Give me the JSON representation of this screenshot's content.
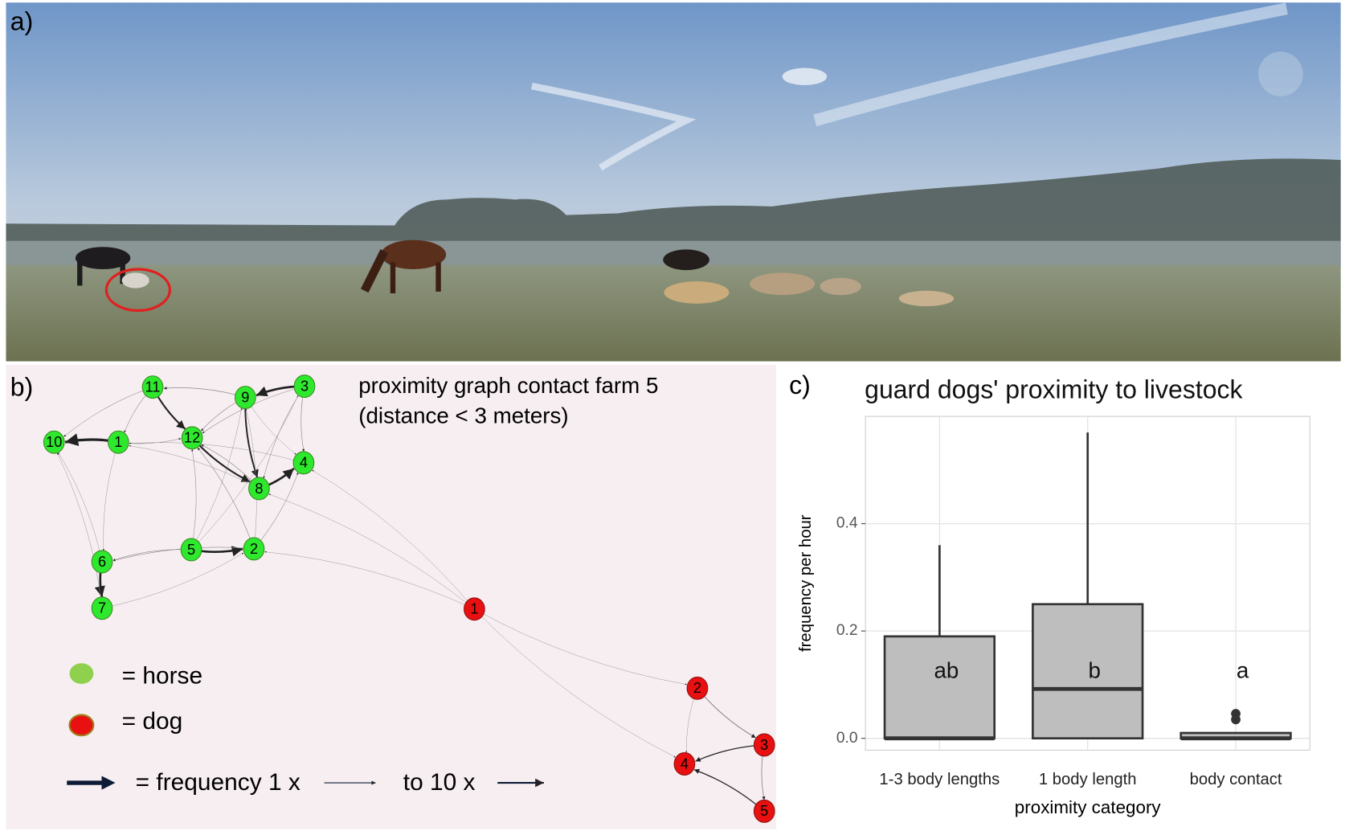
{
  "panel_a": {
    "label": "a)"
  },
  "panel_b": {
    "label": "b)",
    "title_lines": [
      "proximity graph contact farm 5",
      "(distance < 3 meters)"
    ],
    "horse_nodes": [
      "11",
      "9",
      "3",
      "10",
      "1",
      "12",
      "4",
      "8",
      "6",
      "5",
      "2",
      "7"
    ],
    "dog_nodes": [
      "1",
      "2",
      "3",
      "4",
      "5"
    ],
    "legend": {
      "horse": "= horse",
      "dog": "= dog",
      "frequency_low": "= frequency 1 x",
      "frequency_high": "to 10 x"
    }
  },
  "panel_c": {
    "label": "c)"
  },
  "chart_data": {
    "type": "box",
    "title": "guard dogs' proximity to livestock",
    "x_label": "proximity category",
    "y_label": "frequency per hour",
    "categories": [
      "1-3 body lengths",
      "1 body length",
      "body contact"
    ],
    "boxes": [
      {
        "min": 0,
        "q1": 0,
        "median": 0,
        "q3": 0.19,
        "max": 0.36,
        "outliers": []
      },
      {
        "min": 0,
        "q1": 0,
        "median": 0.092,
        "q3": 0.25,
        "max": 0.57,
        "outliers": []
      },
      {
        "min": 0,
        "q1": 0,
        "median": 0,
        "q3": 0.01,
        "max": 0.01,
        "outliers": [
          0.035,
          0.046
        ]
      }
    ],
    "group_letters": [
      "ab",
      "b",
      "a"
    ],
    "ylim": [
      -0.022,
      0.6
    ],
    "yticks": [
      {
        "value": 0,
        "label": "0.0"
      },
      0.2,
      0.4
    ],
    "box_color": "#bebebe",
    "grid": true
  }
}
